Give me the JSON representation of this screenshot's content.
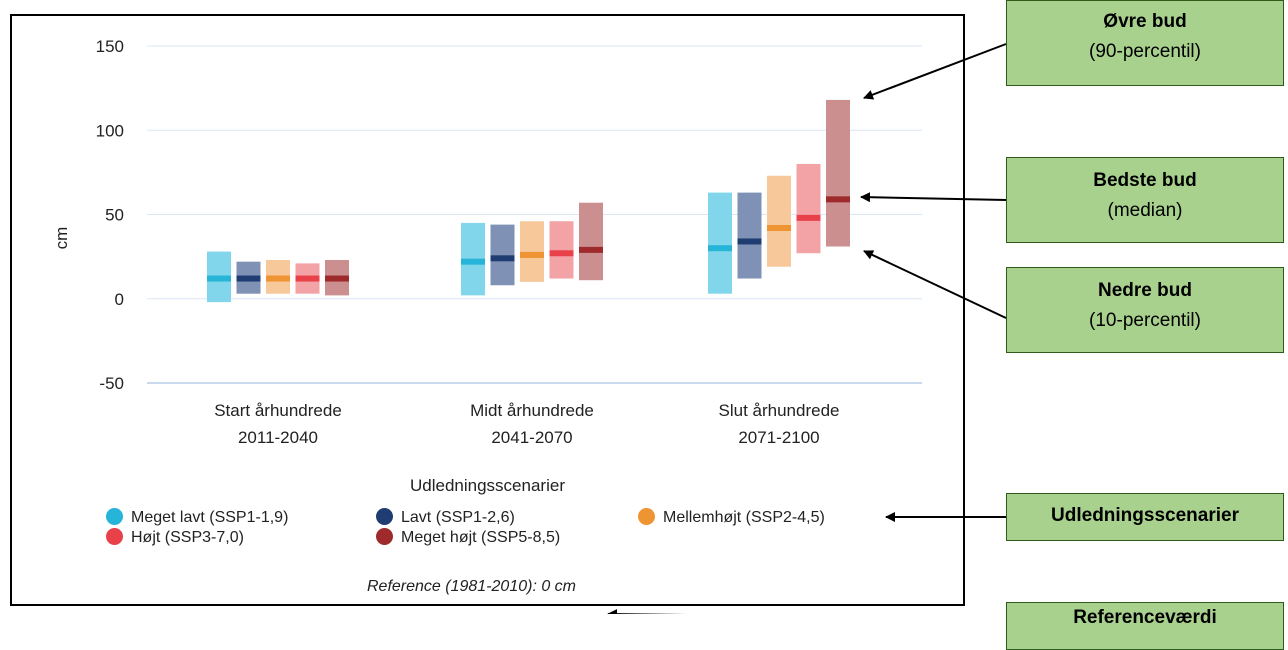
{
  "chart_data": {
    "type": "range-bar",
    "ylabel": "cm",
    "ylim": [
      -50,
      150
    ],
    "yticks": [
      "150",
      "100",
      "50",
      "0",
      "-50"
    ],
    "ytick_values": [
      150,
      100,
      50,
      0,
      -50
    ],
    "categories": [
      {
        "line1": "Start århundrede",
        "line2": "2011-2040"
      },
      {
        "line1": "Midt århundrede",
        "line2": "2041-2070"
      },
      {
        "line1": "Slut århundrede",
        "line2": "2071-2100"
      }
    ],
    "legend_title": "Udledningsscenarier",
    "series": [
      {
        "name": "Meget lavt (SSP1-1,9)",
        "color": "#26b5d9",
        "light": "#82d6ec",
        "low": [
          -2,
          2,
          3
        ],
        "median": [
          12,
          22,
          30
        ],
        "high": [
          28,
          45,
          63
        ]
      },
      {
        "name": "Lavt (SSP1-2,6)",
        "color": "#1f3d73",
        "light": "#7f91b4",
        "low": [
          3,
          8,
          12
        ],
        "median": [
          12,
          24,
          34
        ],
        "high": [
          22,
          44,
          63
        ]
      },
      {
        "name": "Mellemhøjt (SSP2-4,5)",
        "color": "#ef9432",
        "light": "#f7c89a",
        "low": [
          3,
          10,
          19
        ],
        "median": [
          12,
          26,
          42
        ],
        "high": [
          23,
          46,
          73
        ]
      },
      {
        "name": "Højt (SSP3-7,0)",
        "color": "#e8414a",
        "light": "#f3a3a6",
        "low": [
          3,
          12,
          27
        ],
        "median": [
          12,
          27,
          48
        ],
        "high": [
          21,
          46,
          80
        ]
      },
      {
        "name": "Meget højt (SSP5-8,5)",
        "color": "#9e2a2b",
        "light": "#cc8f8f",
        "low": [
          2,
          11,
          31
        ],
        "median": [
          12,
          29,
          59
        ],
        "high": [
          23,
          57,
          118
        ]
      }
    ],
    "grid": true
  },
  "reference_text": "Reference (1981-2010): 0 cm",
  "callouts": {
    "upper": {
      "title": "Øvre bud",
      "sub": "(90-percentil)"
    },
    "best": {
      "title": "Bedste bud",
      "sub": "(median)"
    },
    "lower": {
      "title": "Nedre bud",
      "sub": "(10-percentil)"
    },
    "scenarios": {
      "title": "Udledningsscenarier"
    },
    "reference": {
      "title": "Referenceværdi"
    }
  },
  "colors": {
    "callout_bg": "#a9d18e",
    "grid": "#dbe6f5",
    "axis": "#b9cde8"
  }
}
